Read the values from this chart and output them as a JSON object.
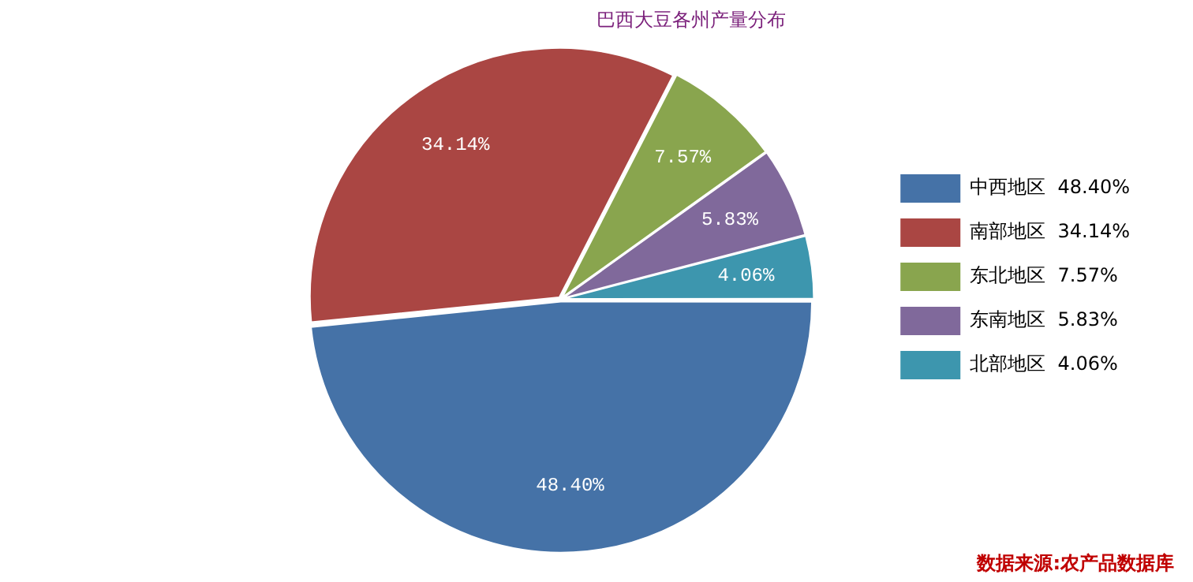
{
  "chart_data": {
    "type": "pie",
    "title": "巴西大豆各州产量分布",
    "categories": [
      "中西地区",
      "南部地区",
      "东北地区",
      "东南地区",
      "北部地区"
    ],
    "values": [
      48.4,
      34.14,
      7.57,
      5.83,
      4.06
    ],
    "value_labels": [
      "48.40%",
      "34.14%",
      "7.57%",
      "5.83%",
      "4.06%"
    ],
    "colors": [
      "#4572a7",
      "#aa4643",
      "#89a54e",
      "#80699b",
      "#3d96ae"
    ],
    "legend": "right",
    "annotations": [
      "数据来源:农产品数据库"
    ]
  }
}
